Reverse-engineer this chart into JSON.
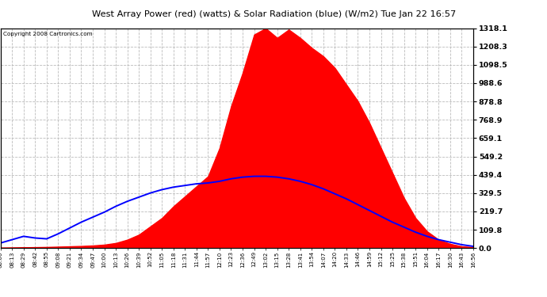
{
  "title": "West Array Power (red) (watts) & Solar Radiation (blue) (W/m2) Tue Jan 22 16:57",
  "copyright": "Copyright 2008 Cartronics.com",
  "y_right_labels": [
    "1318.1",
    "1208.3",
    "1098.5",
    "988.6",
    "878.8",
    "768.9",
    "659.1",
    "549.2",
    "439.4",
    "329.5",
    "219.7",
    "109.8",
    "0.0"
  ],
  "y_right_values": [
    1318.1,
    1208.3,
    1098.5,
    988.6,
    878.8,
    768.9,
    659.1,
    549.2,
    439.4,
    329.5,
    219.7,
    109.8,
    0.0
  ],
  "y_max": 1318.1,
  "y_min": 0.0,
  "x_labels": [
    "08:00",
    "08:13",
    "08:29",
    "08:42",
    "08:55",
    "09:08",
    "09:21",
    "09:34",
    "09:47",
    "10:00",
    "10:13",
    "10:26",
    "10:39",
    "10:52",
    "11:05",
    "11:18",
    "11:31",
    "11:44",
    "11:57",
    "12:10",
    "12:23",
    "12:36",
    "12:49",
    "13:02",
    "13:15",
    "13:28",
    "13:41",
    "13:54",
    "14:07",
    "14:20",
    "14:33",
    "14:46",
    "14:59",
    "15:12",
    "15:25",
    "15:38",
    "15:51",
    "16:04",
    "16:17",
    "16:30",
    "16:43",
    "16:56"
  ],
  "red_color": "#ff0000",
  "blue_color": "#0000ff",
  "title_bg": "#c8c8c8",
  "grid_color": "#bbbbbb",
  "red_data": [
    2,
    3,
    4,
    5,
    6,
    8,
    10,
    12,
    15,
    20,
    30,
    50,
    80,
    130,
    180,
    250,
    310,
    370,
    430,
    600,
    850,
    1050,
    1280,
    1318,
    1260,
    1310,
    1260,
    1200,
    1150,
    1080,
    980,
    880,
    750,
    600,
    450,
    300,
    180,
    100,
    50,
    25,
    10,
    5
  ],
  "blue_data": [
    30,
    50,
    70,
    60,
    55,
    85,
    120,
    155,
    185,
    215,
    250,
    280,
    305,
    330,
    350,
    365,
    375,
    385,
    390,
    400,
    415,
    425,
    430,
    430,
    425,
    415,
    400,
    380,
    355,
    325,
    295,
    260,
    225,
    190,
    155,
    125,
    95,
    70,
    50,
    35,
    20,
    10
  ]
}
